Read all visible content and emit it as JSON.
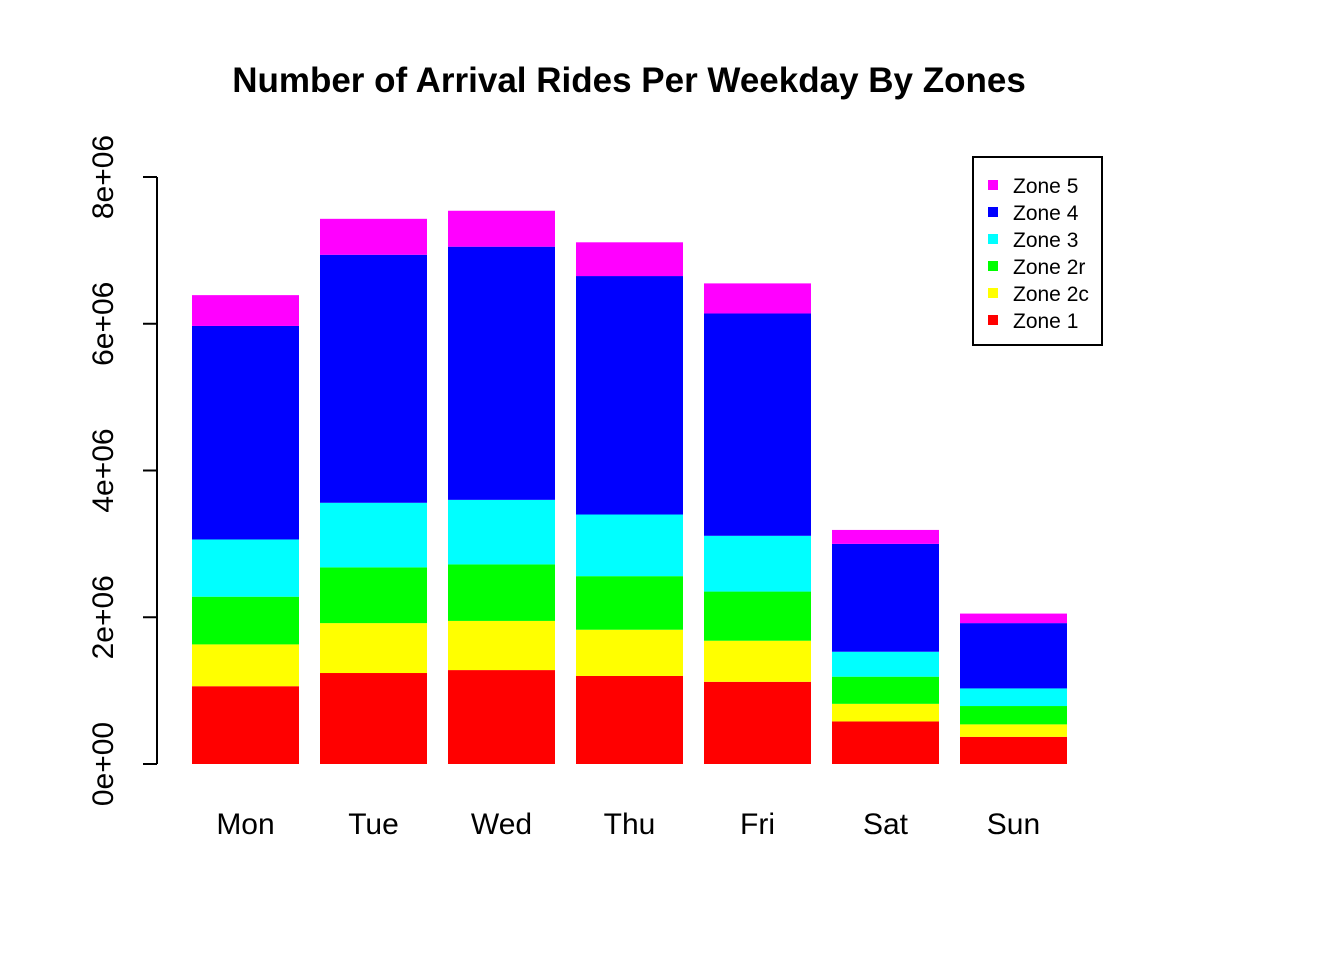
{
  "chart_data": {
    "type": "bar",
    "stacked": true,
    "title": "Number of Arrival Rides Per Weekday By Zones",
    "xlabel": "",
    "ylabel": "",
    "categories": [
      "Mon",
      "Tue",
      "Wed",
      "Thu",
      "Fri",
      "Sat",
      "Sun"
    ],
    "ylim": [
      0,
      8000000
    ],
    "yticks": [
      0,
      2000000,
      4000000,
      6000000,
      8000000
    ],
    "ytick_labels": [
      "0e+00",
      "2e+06",
      "4e+06",
      "6e+06",
      "8e+06"
    ],
    "legend_position": "top-right",
    "legend_order": [
      "Zone 5",
      "Zone 4",
      "Zone 3",
      "Zone 2r",
      "Zone 2c",
      "Zone 1"
    ],
    "series": [
      {
        "name": "Zone 1",
        "color": "#ff0000",
        "values": [
          1060000,
          1240000,
          1280000,
          1200000,
          1120000,
          580000,
          370000
        ]
      },
      {
        "name": "Zone 2c",
        "color": "#ffff00",
        "values": [
          570000,
          680000,
          670000,
          630000,
          560000,
          240000,
          170000
        ]
      },
      {
        "name": "Zone 2r",
        "color": "#00ff00",
        "values": [
          650000,
          760000,
          770000,
          730000,
          670000,
          370000,
          250000
        ]
      },
      {
        "name": "Zone 3",
        "color": "#00ffff",
        "values": [
          780000,
          880000,
          880000,
          840000,
          760000,
          340000,
          240000
        ]
      },
      {
        "name": "Zone 4",
        "color": "#0000ff",
        "values": [
          2910000,
          3380000,
          3450000,
          3250000,
          3030000,
          1470000,
          890000
        ]
      },
      {
        "name": "Zone 5",
        "color": "#ff00ff",
        "values": [
          420000,
          490000,
          490000,
          460000,
          410000,
          190000,
          130000
        ]
      }
    ]
  }
}
